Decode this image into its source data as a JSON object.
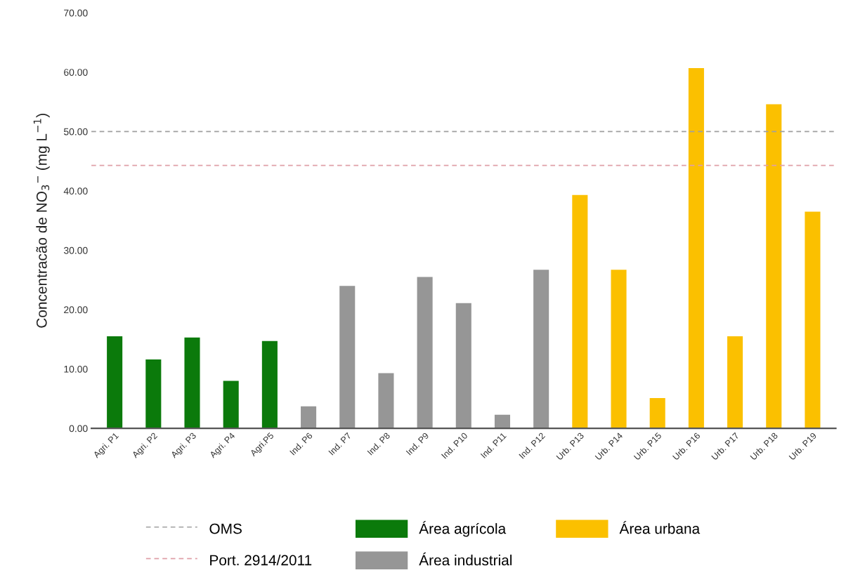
{
  "chart_data": {
    "type": "bar",
    "ylabel": "Concentracão de NO$_{3}$$^{−}$ (mg L$^{−1}$)",
    "categories": [
      "Agri. P1",
      "Agri. P2",
      "Agri. P3",
      "Agri. P4",
      "Agri.P5",
      "Ind. P6",
      "Ind. P7",
      "Ind. P8",
      "Ind. P9",
      "Ind. P10",
      "Ind. P11",
      "Ind. P12",
      "Urb. P13",
      "Urb. P14",
      "Urb. P15",
      "Urb. P16",
      "Urb. P17",
      "Urb. P18",
      "Urb. P19"
    ],
    "series": [
      {
        "name": "Área agrícola",
        "color": "#0b7a0b",
        "values": [
          15.5,
          11.6,
          15.3,
          8.0,
          14.7,
          null,
          null,
          null,
          null,
          null,
          null,
          null,
          null,
          null,
          null,
          null,
          null,
          null,
          null
        ]
      },
      {
        "name": "Área industrial",
        "color": "#969696",
        "values": [
          null,
          null,
          null,
          null,
          null,
          3.7,
          24.0,
          9.3,
          25.5,
          21.1,
          2.3,
          26.7,
          null,
          null,
          null,
          null,
          null,
          null,
          null
        ]
      },
      {
        "name": "Área urbana",
        "color": "#fbc000",
        "values": [
          null,
          null,
          null,
          null,
          null,
          null,
          null,
          null,
          null,
          null,
          null,
          null,
          39.3,
          26.7,
          5.1,
          60.7,
          15.5,
          54.6,
          36.5
        ]
      }
    ],
    "ylim": [
      0,
      70
    ],
    "yticks": [
      {
        "value": 0,
        "label": "0.00"
      },
      {
        "value": 10,
        "label": "10.00"
      },
      {
        "value": 20,
        "label": "20.00"
      },
      {
        "value": 30,
        "label": "30.00"
      },
      {
        "value": 40,
        "label": "40.00"
      },
      {
        "value": 50,
        "label": "50.00"
      },
      {
        "value": 60,
        "label": "60.00"
      },
      {
        "value": 70,
        "label": "70.00"
      }
    ],
    "ref_lines": [
      {
        "axis": "y",
        "value": 50,
        "label": "OMS",
        "color": "#a0a0a0",
        "line_style": "dashed"
      },
      {
        "axis": "y",
        "value": 44.3,
        "label": "Port. 2914/2011",
        "color": "#e0a0a8",
        "line_style": "dashed"
      }
    ],
    "grid": false,
    "legend": "bottom"
  }
}
